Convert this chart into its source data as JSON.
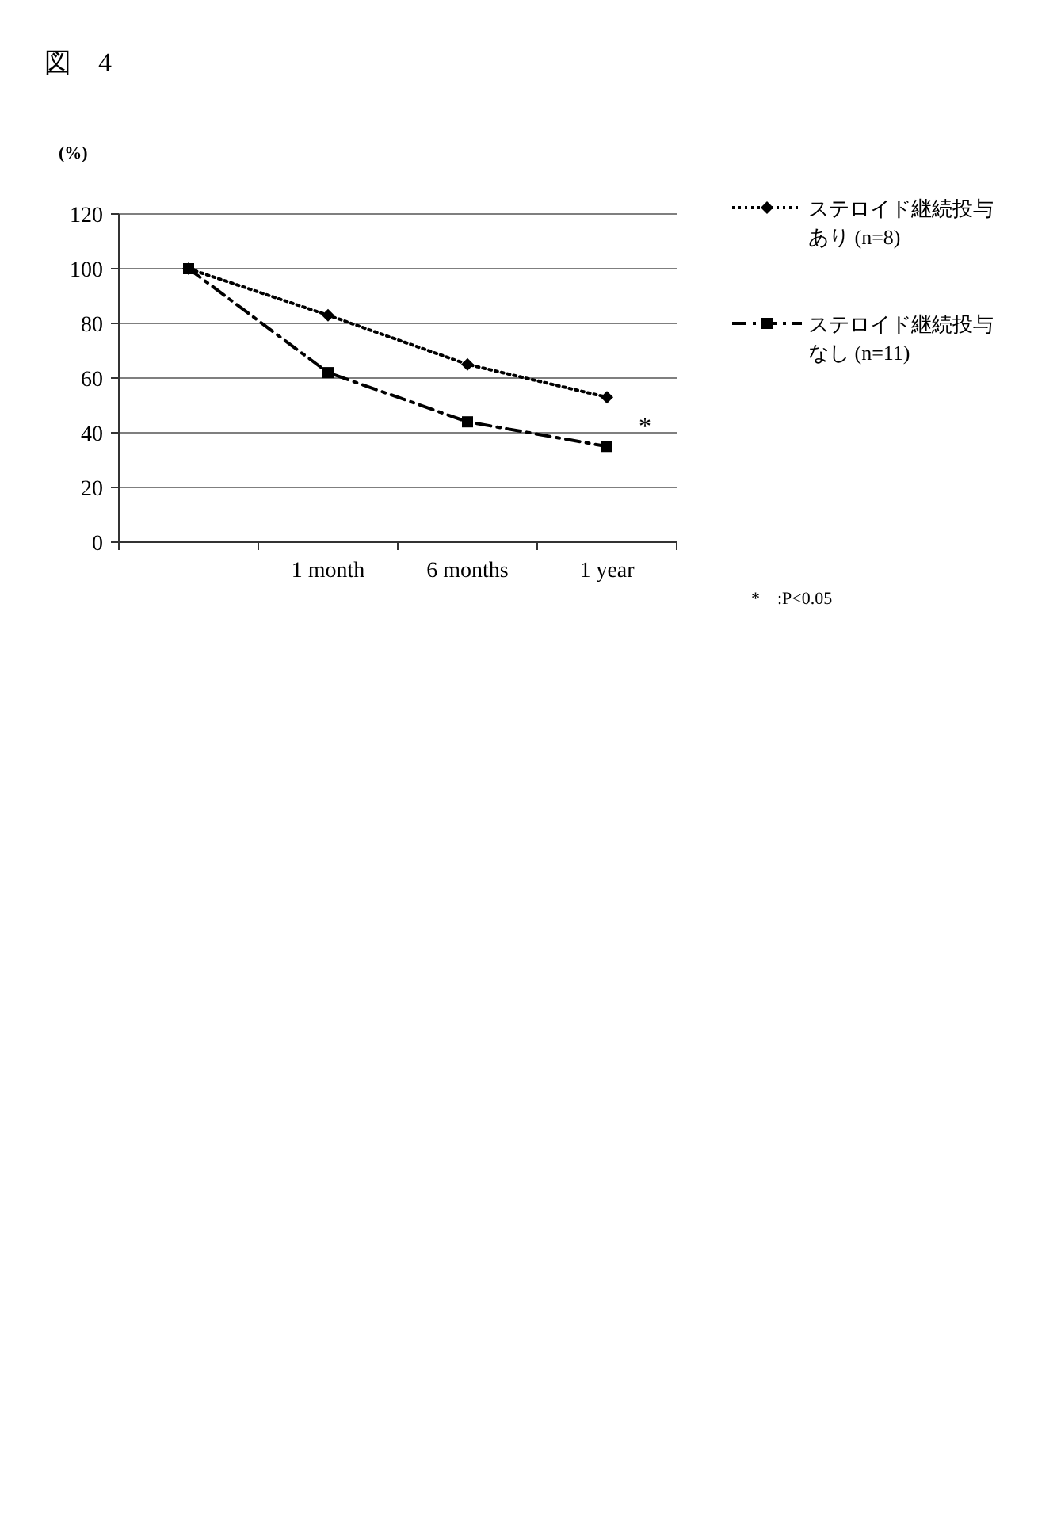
{
  "chart_data": {
    "type": "line",
    "title": "図　4",
    "ylabel": "(%)",
    "categories": [
      null,
      "1 month",
      "6 months",
      "1 year"
    ],
    "series": [
      {
        "name": "ステロイド継続投与あり (n=8)",
        "color": "#000000",
        "values": [
          100,
          83,
          65,
          53
        ],
        "marker": "diamond",
        "line_style": "dotted"
      },
      {
        "name": "ステロイド継続投与なし (n=11)",
        "color": "#000000",
        "values": [
          100,
          62,
          44,
          35
        ],
        "marker": "square",
        "line_style": "dashed"
      }
    ],
    "ylim": [
      0,
      120
    ],
    "yticks": [
      0,
      20,
      40,
      60,
      80,
      100,
      120
    ],
    "grid": "y",
    "legend": "right",
    "annotations": [
      "*",
      "*　:P<0.05"
    ]
  }
}
